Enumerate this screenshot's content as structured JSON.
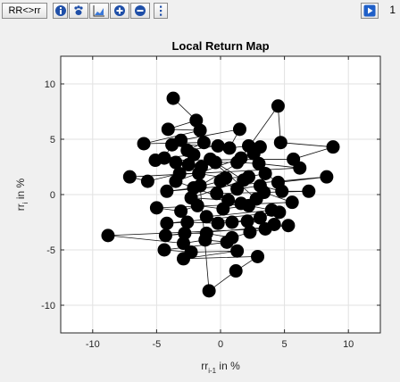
{
  "toolbar": {
    "mode_label": "RR<>rr",
    "icons": [
      "info-icon",
      "paw-icon",
      "area-plot-icon",
      "zoom-in-icon",
      "zoom-out-icon",
      "more-vertical-icon"
    ],
    "play_icon": "play-icon",
    "right_value": "1"
  },
  "chart_data": {
    "type": "scatter",
    "title": "Local Return Map",
    "xlabel": "rr",
    "xlabel_sub": "i-1",
    "xlabel_suffix": " in %",
    "ylabel": "rr",
    "ylabel_sub": "i",
    "ylabel_suffix": " in %",
    "xlim": [
      -12.5,
      12.5
    ],
    "ylim": [
      -12.5,
      12.5
    ],
    "xticks": [
      -10,
      -5,
      0,
      5,
      10
    ],
    "yticks": [
      -10,
      -5,
      0,
      5,
      10
    ],
    "grid": true,
    "connected": true,
    "marker_color": "#000000",
    "points": [
      [
        -3.7,
        8.7
      ],
      [
        -1.9,
        6.7
      ],
      [
        -4.1,
        5.9
      ],
      [
        -1.6,
        5.8
      ],
      [
        -6,
        4.6
      ],
      [
        -1.3,
        4.7
      ],
      [
        -2.6,
        4
      ],
      [
        -0.2,
        4.4
      ],
      [
        -3.8,
        4.5
      ],
      [
        -4.4,
        3.3
      ],
      [
        -2.1,
        3.6
      ],
      [
        -3.1,
        4.9
      ],
      [
        1.5,
        5.9
      ],
      [
        0.7,
        4.2
      ],
      [
        2.2,
        4.4
      ],
      [
        3.1,
        4.3
      ],
      [
        1.6,
        3.3
      ],
      [
        4.5,
        8
      ],
      [
        4.7,
        4.7
      ],
      [
        8.8,
        4.3
      ],
      [
        5.7,
        3.2
      ],
      [
        -5.1,
        3.1
      ],
      [
        -3.5,
        2.9
      ],
      [
        -2.5,
        2.7
      ],
      [
        -1.5,
        2.5
      ],
      [
        -0.4,
        2.9
      ],
      [
        1.3,
        2.9
      ],
      [
        3,
        2.8
      ],
      [
        6.2,
        2.4
      ],
      [
        -7.1,
        1.6
      ],
      [
        -5.7,
        1.2
      ],
      [
        -3.2,
        1.9
      ],
      [
        -1.7,
        1.9
      ],
      [
        0.4,
        1.5
      ],
      [
        2.2,
        1.6
      ],
      [
        3.5,
        1.9
      ],
      [
        4.5,
        1.1
      ],
      [
        8.3,
        1.6
      ],
      [
        -4.2,
        0.3
      ],
      [
        -2.1,
        0.6
      ],
      [
        0,
        1.2
      ],
      [
        1.3,
        0.5
      ],
      [
        3.1,
        0.8
      ],
      [
        4.8,
        0.3
      ],
      [
        6.9,
        0.3
      ],
      [
        -0.3,
        0.1
      ],
      [
        1.6,
        -0.8
      ],
      [
        3.4,
        0.2
      ],
      [
        5.6,
        -0.7
      ],
      [
        -5,
        -1.2
      ],
      [
        -3.1,
        -1.5
      ],
      [
        -1.8,
        -1
      ],
      [
        0.2,
        -1.3
      ],
      [
        2.2,
        -1
      ],
      [
        4,
        -1.4
      ],
      [
        -1.1,
        -2
      ],
      [
        0.9,
        -2.5
      ],
      [
        3.1,
        -2.1
      ],
      [
        4.6,
        -1.6
      ],
      [
        -4.2,
        -2.6
      ],
      [
        -2.6,
        -2.5
      ],
      [
        -0.2,
        -2.6
      ],
      [
        2.1,
        -2.4
      ],
      [
        4.2,
        -2.7
      ],
      [
        5.3,
        -2.8
      ],
      [
        -4.3,
        -3.7
      ],
      [
        -2.8,
        -3.5
      ],
      [
        -1.1,
        -3.5
      ],
      [
        0.9,
        -3.9
      ],
      [
        2.3,
        -3.4
      ],
      [
        3.5,
        -3.1
      ],
      [
        -8.8,
        -3.7
      ],
      [
        -2.9,
        -4.4
      ],
      [
        -1.2,
        -4.1
      ],
      [
        0.5,
        -4.3
      ],
      [
        -4.4,
        -5
      ],
      [
        -2.3,
        -5.2
      ],
      [
        1.3,
        -5.1
      ],
      [
        -2.9,
        -5.8
      ],
      [
        2.9,
        -5.6
      ],
      [
        1.2,
        -6.9
      ],
      [
        -0.9,
        -8.7
      ],
      [
        -1.6,
        0.8
      ],
      [
        2.6,
        3.7
      ],
      [
        -3.5,
        1.2
      ],
      [
        0.6,
        -0.5
      ],
      [
        -2.3,
        -0.3
      ],
      [
        1.8,
        1.3
      ],
      [
        -0.8,
        3.2
      ],
      [
        2.8,
        -0.4
      ]
    ]
  }
}
